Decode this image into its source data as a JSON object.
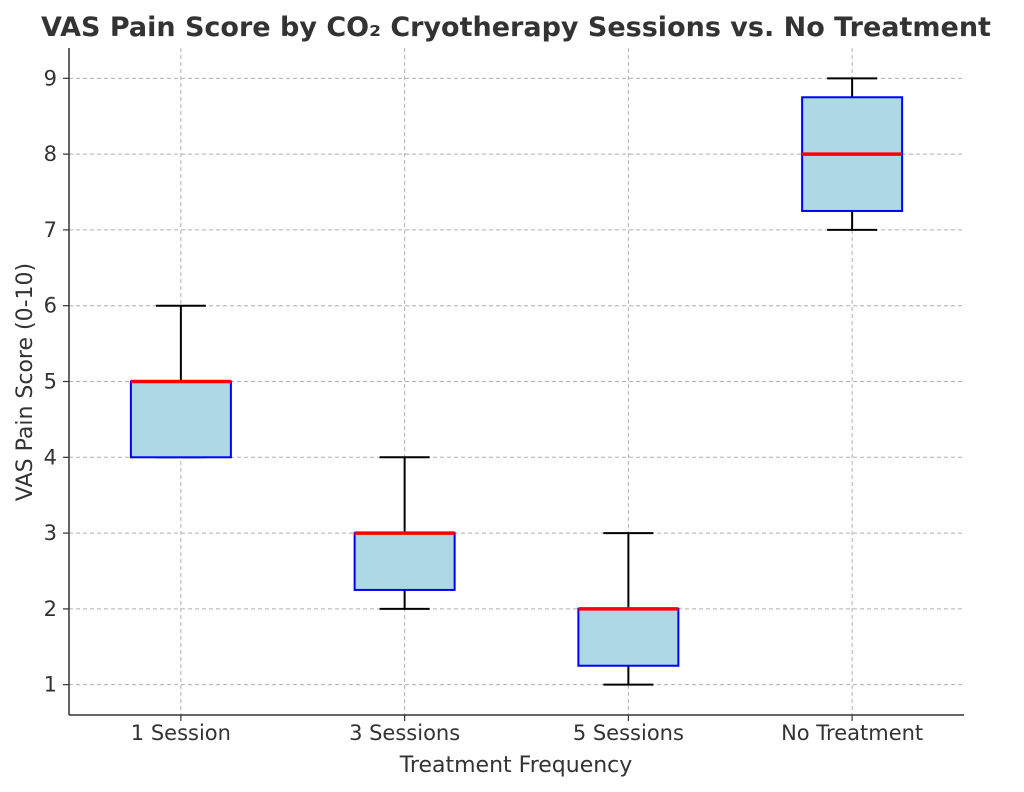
{
  "chart_data": {
    "type": "box",
    "title": "VAS Pain Score by CO₂ Cryotherapy Sessions vs. No Treatment",
    "xlabel": "Treatment Frequency",
    "ylabel": "VAS Pain Score (0-10)",
    "ylim": [
      0.6,
      9.4
    ],
    "yticks": [
      "1",
      "2",
      "3",
      "4",
      "5",
      "6",
      "7",
      "8",
      "9"
    ],
    "grid": true,
    "categories": [
      "1 Session",
      "3 Sessions",
      "5 Sessions",
      "No Treatment"
    ],
    "boxes": [
      {
        "category": "1 Session",
        "min": 4,
        "q1": 4,
        "median": 5,
        "q3": 5,
        "max": 6
      },
      {
        "category": "3 Sessions",
        "min": 2,
        "q1": 2.25,
        "median": 3,
        "q3": 3,
        "max": 4
      },
      {
        "category": "5 Sessions",
        "min": 1,
        "q1": 1.25,
        "median": 2,
        "q3": 2,
        "max": 3
      },
      {
        "category": "No Treatment",
        "min": 7,
        "q1": 7.25,
        "median": 8,
        "q3": 8.75,
        "max": 9
      }
    ],
    "colors": {
      "box_fill": "#add8e6",
      "box_edge": "#0000ff",
      "median": "#ff0000",
      "whisker": "#000000",
      "grid": "#b0b0b0",
      "axis": "#333333"
    }
  }
}
